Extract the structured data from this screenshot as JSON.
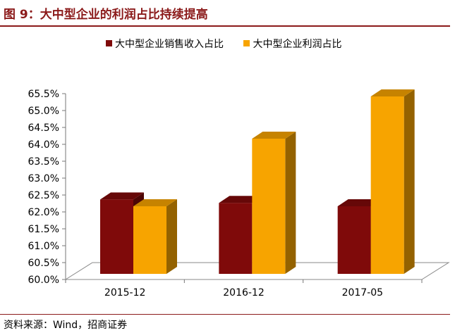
{
  "header": {
    "title": "图 9：大中型企业的利润占比持续提高"
  },
  "footer": {
    "source": "资料来源：Wind，招商证券"
  },
  "colors": {
    "accent": "#8b1a1a",
    "series_revenue": "#7f0a0a",
    "series_profit": "#f7a400"
  },
  "chart_data": {
    "type": "bar",
    "categories": [
      "2015-12",
      "2016-12",
      "2017-05"
    ],
    "series": [
      {
        "name": "大中型企业销售收入占比",
        "values": [
          62.2,
          62.1,
          62.0
        ]
      },
      {
        "name": "大中型企业利润占比",
        "values": [
          62.0,
          64.0,
          65.25
        ]
      }
    ],
    "ylim": [
      60.0,
      65.5
    ],
    "yticks": [
      "60.0%",
      "60.5%",
      "61.0%",
      "61.5%",
      "62.0%",
      "62.5%",
      "63.0%",
      "63.5%",
      "64.0%",
      "64.5%",
      "65.0%",
      "65.5%"
    ],
    "legend": "top",
    "grid": false
  }
}
